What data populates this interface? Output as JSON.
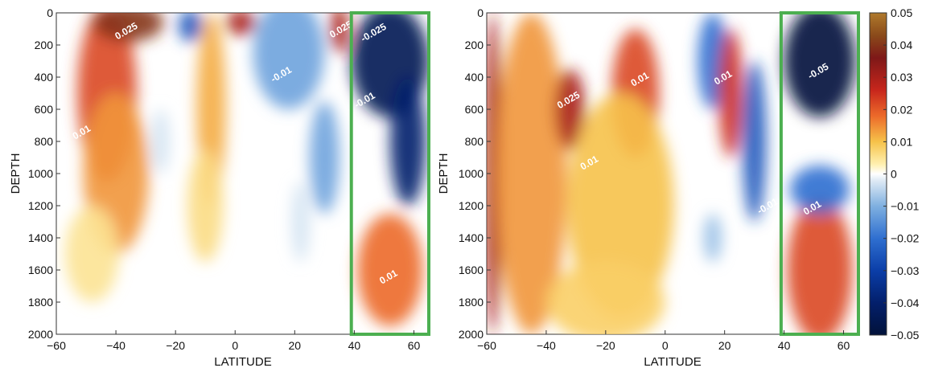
{
  "chart_data": [
    {
      "type": "heatmap",
      "title": "",
      "xlabel": "LATITUDE",
      "ylabel": "DEPTH",
      "xlim": [
        -60,
        65
      ],
      "ylim": [
        2000,
        0
      ],
      "y_inverted": true,
      "xticks": [
        -60,
        -40,
        -20,
        0,
        20,
        40,
        60
      ],
      "yticks": [
        0,
        200,
        400,
        600,
        800,
        1000,
        1200,
        1400,
        1600,
        1800,
        2000
      ],
      "highlight_box": {
        "lat_from": 39,
        "lat_to": 65,
        "color": "#4caf50"
      },
      "contour_labels": [
        {
          "text": "0.025",
          "lat": -36,
          "depth": 130
        },
        {
          "text": "-0.01",
          "lat": 16,
          "depth": 400
        },
        {
          "text": "0.025",
          "lat": 36,
          "depth": 120
        },
        {
          "text": "-0.025",
          "lat": 47,
          "depth": 140
        },
        {
          "text": "-0.01",
          "lat": 44,
          "depth": 560
        },
        {
          "text": "0.01",
          "lat": -51,
          "depth": 760
        },
        {
          "text": "0.01",
          "lat": 52,
          "depth": 1660
        }
      ],
      "blobs": [
        {
          "lat": -43,
          "depth": 500,
          "rlat": 10,
          "rdepth": 550,
          "value": 0.022
        },
        {
          "lat": -40,
          "depth": 1000,
          "rlat": 11,
          "rdepth": 500,
          "value": 0.014
        },
        {
          "lat": -36,
          "depth": 60,
          "rlat": 12,
          "rdepth": 120,
          "value": 0.04
        },
        {
          "lat": -48,
          "depth": 1500,
          "rlat": 9,
          "rdepth": 300,
          "value": 0.005
        },
        {
          "lat": -15,
          "depth": 80,
          "rlat": 4,
          "rdepth": 100,
          "value": -0.025
        },
        {
          "lat": -8,
          "depth": 600,
          "rlat": 5,
          "rdepth": 600,
          "value": 0.012
        },
        {
          "lat": -10,
          "depth": 1200,
          "rlat": 6,
          "rdepth": 350,
          "value": 0.006
        },
        {
          "lat": 2,
          "depth": 60,
          "rlat": 5,
          "rdepth": 80,
          "value": 0.03
        },
        {
          "lat": 18,
          "depth": 250,
          "rlat": 12,
          "rdepth": 350,
          "value": -0.012
        },
        {
          "lat": 30,
          "depth": 900,
          "rlat": 5,
          "rdepth": 350,
          "value": -0.012
        },
        {
          "lat": -25,
          "depth": 800,
          "rlat": 3,
          "rdepth": 200,
          "value": -0.003
        },
        {
          "lat": 22,
          "depth": 1300,
          "rlat": 3,
          "rdepth": 250,
          "value": -0.003
        },
        {
          "lat": 35,
          "depth": 100,
          "rlat": 3,
          "rdepth": 150,
          "value": 0.03
        },
        {
          "lat": 52,
          "depth": 300,
          "rlat": 13,
          "rdepth": 350,
          "value": -0.045
        },
        {
          "lat": 58,
          "depth": 800,
          "rlat": 6,
          "rdepth": 400,
          "value": -0.04
        },
        {
          "lat": 52,
          "depth": 1600,
          "rlat": 11,
          "rdepth": 350,
          "value": 0.018
        }
      ]
    },
    {
      "type": "heatmap",
      "title": "",
      "xlabel": "LATITUDE",
      "ylabel": "DEPTH",
      "xlim": [
        -60,
        65
      ],
      "ylim": [
        2000,
        0
      ],
      "y_inverted": true,
      "xticks": [
        -60,
        -40,
        -20,
        0,
        20,
        40,
        60
      ],
      "yticks": [
        0,
        200,
        400,
        600,
        800,
        1000,
        1200,
        1400,
        1600,
        1800,
        2000
      ],
      "highlight_box": {
        "lat_from": 39,
        "lat_to": 65,
        "color": "#4caf50"
      },
      "colorbar": {
        "min": -0.05,
        "max": 0.05,
        "ticks": [
          0.05,
          0.04,
          0.03,
          0.02,
          0.01,
          0,
          -0.01,
          -0.02,
          -0.03,
          -0.04,
          -0.05
        ]
      },
      "contour_labels": [
        {
          "text": "0.025",
          "lat": -32,
          "depth": 560
        },
        {
          "text": "0.01",
          "lat": -8,
          "depth": 430
        },
        {
          "text": "0.01",
          "lat": -25,
          "depth": 950
        },
        {
          "text": "0.01",
          "lat": 20,
          "depth": 420
        },
        {
          "text": "-0.05",
          "lat": 52,
          "depth": 380
        },
        {
          "text": "-0.01",
          "lat": 35,
          "depth": 1220
        },
        {
          "text": "0.01",
          "lat": 50,
          "depth": 1230
        }
      ],
      "blobs": [
        {
          "lat": -58,
          "depth": 1000,
          "rlat": 3,
          "rdepth": 1000,
          "value": 0.03
        },
        {
          "lat": -45,
          "depth": 1000,
          "rlat": 12,
          "rdepth": 1000,
          "value": 0.014
        },
        {
          "lat": -32,
          "depth": 600,
          "rlat": 5,
          "rdepth": 250,
          "value": 0.03
        },
        {
          "lat": -10,
          "depth": 500,
          "rlat": 8,
          "rdepth": 400,
          "value": 0.022
        },
        {
          "lat": -15,
          "depth": 1200,
          "rlat": 18,
          "rdepth": 700,
          "value": 0.01
        },
        {
          "lat": 16,
          "depth": 300,
          "rlat": 5,
          "rdepth": 300,
          "value": -0.02
        },
        {
          "lat": 30,
          "depth": 800,
          "rlat": 4,
          "rdepth": 500,
          "value": -0.025
        },
        {
          "lat": 22,
          "depth": 500,
          "rlat": 4,
          "rdepth": 400,
          "value": 0.025
        },
        {
          "lat": 16,
          "depth": 1400,
          "rlat": 3,
          "rdepth": 150,
          "value": -0.008
        },
        {
          "lat": -20,
          "depth": 1800,
          "rlat": 20,
          "rdepth": 250,
          "value": 0.008
        },
        {
          "lat": 52,
          "depth": 300,
          "rlat": 12,
          "rdepth": 350,
          "value": -0.05
        },
        {
          "lat": 52,
          "depth": 1600,
          "rlat": 11,
          "rdepth": 450,
          "value": 0.022
        },
        {
          "lat": 52,
          "depth": 1100,
          "rlat": 10,
          "rdepth": 150,
          "value": -0.02
        }
      ]
    }
  ]
}
